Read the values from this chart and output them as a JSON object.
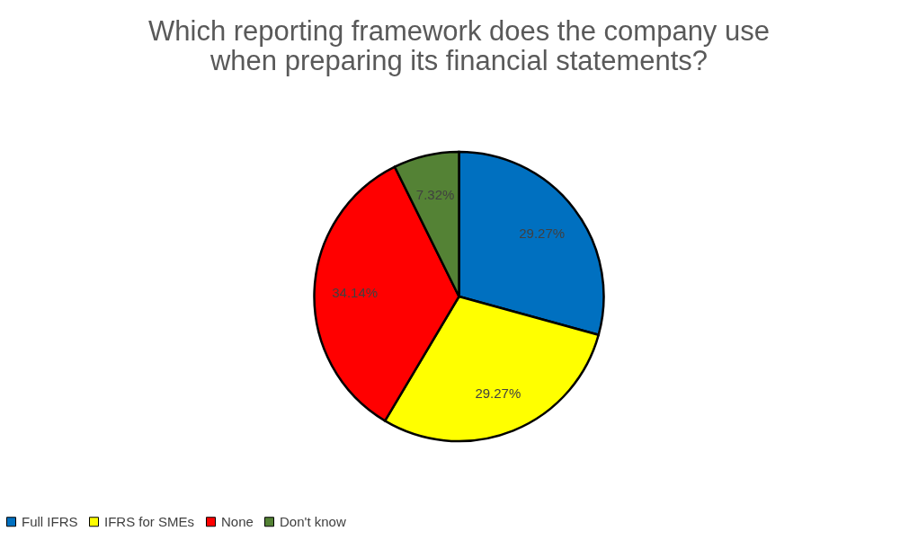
{
  "chart_data": {
    "type": "pie",
    "title": "Which reporting framework does the company use\nwhen preparing its financial statements?",
    "categories": [
      "Full IFRS",
      "IFRS for SMEs",
      "None",
      "Don't know"
    ],
    "values": [
      29.27,
      29.27,
      34.14,
      7.32
    ],
    "colors": [
      "#0070c0",
      "#ffff00",
      "#ff0000",
      "#548235"
    ],
    "value_labels": [
      "29.27%",
      "29.27%",
      "34.14%",
      "7.32%"
    ],
    "legend": "bottom"
  }
}
